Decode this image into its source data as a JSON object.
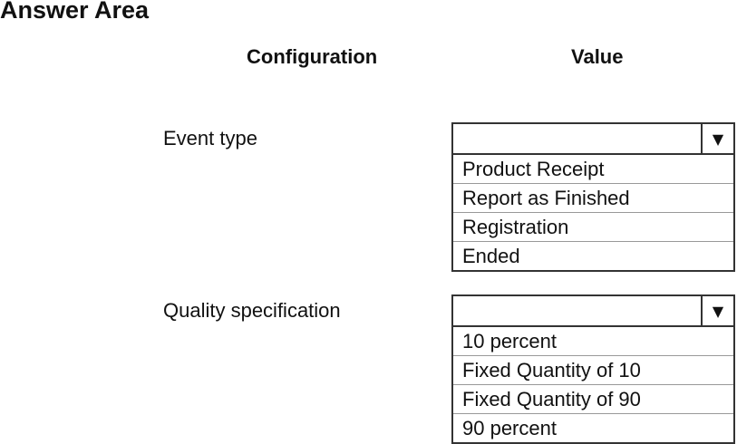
{
  "title": "Answer Area",
  "headers": {
    "configuration": "Configuration",
    "value": "Value"
  },
  "rows": [
    {
      "label": "Event type",
      "selected": "",
      "options": [
        "Product Receipt",
        "Report as Finished",
        "Registration",
        "Ended"
      ]
    },
    {
      "label": "Quality specification",
      "selected": "",
      "options": [
        "10 percent",
        "Fixed Quantity of 10",
        "Fixed Quantity of 90",
        "90 percent"
      ]
    }
  ],
  "icons": {
    "dropdown": "▼"
  }
}
